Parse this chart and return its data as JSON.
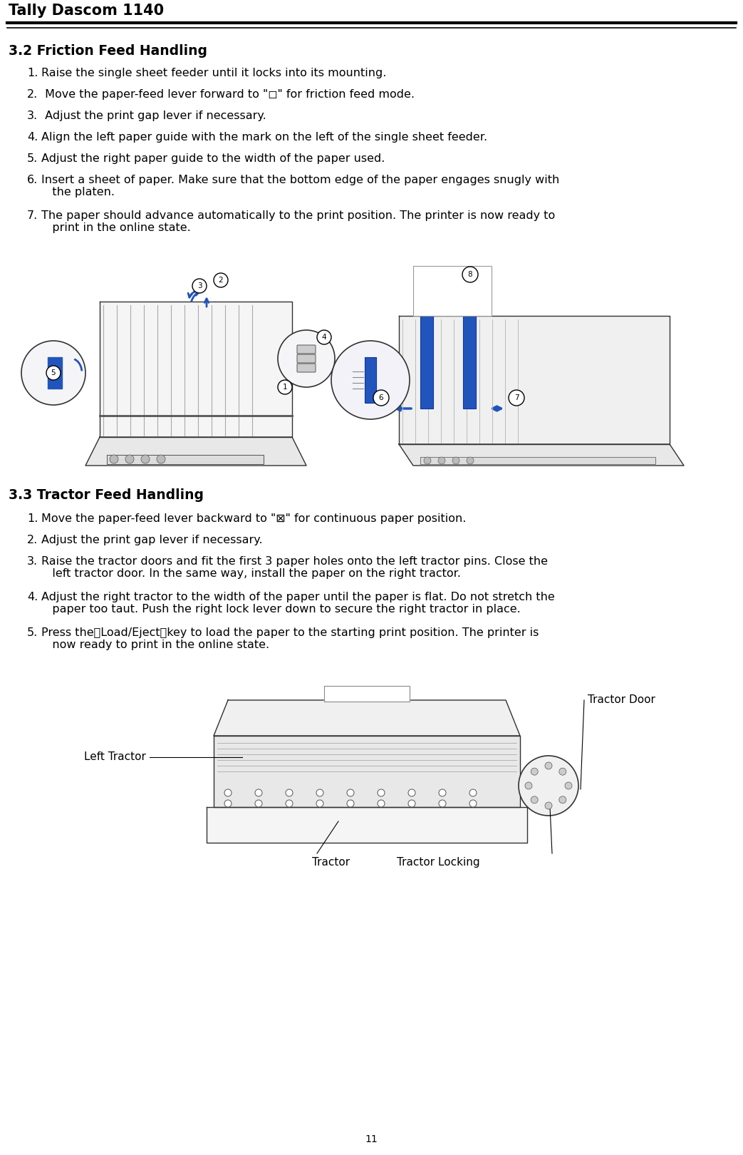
{
  "title": "Tally Dascom 1140",
  "section1_title": "3.2 Friction Feed Handling",
  "section1_items": [
    {
      "num": "1.",
      "text": "Raise the single sheet feeder until it locks into its mounting."
    },
    {
      "num": "2.",
      "text": " Move the paper-feed lever forward to \"◻\" for friction feed mode."
    },
    {
      "num": "3.",
      "text": " Adjust the print gap lever if necessary."
    },
    {
      "num": "4.",
      "text": "Align the left paper guide with the mark on the left of the single sheet feeder."
    },
    {
      "num": "5.",
      "text": "Adjust the right paper guide to the width of the paper used."
    },
    {
      "num": "6.",
      "text": "Insert a sheet of paper. Make sure that the bottom edge of the paper engages snugly with\n   the platen."
    },
    {
      "num": "7.",
      "text": "The paper should advance automatically to the print position. The printer is now ready to\n   print in the online state."
    }
  ],
  "section2_title": "3.3 Tractor Feed Handling",
  "section2_items": [
    {
      "num": "1.",
      "text": "Move the paper-feed lever backward to \"⊠\" for continuous paper position."
    },
    {
      "num": "2.",
      "text": "Adjust the print gap lever if necessary."
    },
    {
      "num": "3.",
      "text": "Raise the tractor doors and fit the first 3 paper holes onto the left tractor pins. Close the\n   left tractor door. In the same way, install the paper on the right tractor."
    },
    {
      "num": "4.",
      "text": "Adjust the right tractor to the width of the paper until the paper is flat. Do not stretch the\n   paper too taut. Push the right lock lever down to secure the right tractor in place."
    },
    {
      "num": "5.",
      "text": "Press the【Load/Eject】key to load the paper to the starting print position. The printer is\n   now ready to print in the online state."
    }
  ],
  "page_number": "11",
  "bg_color": "#ffffff",
  "text_color": "#000000",
  "title_fontsize": 15,
  "section_fontsize": 13.5,
  "body_fontsize": 11.5,
  "left_tractor_label": "Left Tractor",
  "tractor_door_label": "Tractor Door",
  "tractor_label": "Tractor",
  "tractor_locking_label": "Tractor Locking",
  "blue": "#2255bb",
  "darkblue": "#1133aa",
  "lightgray": "#f0f0f0",
  "midgray": "#888888",
  "darkgray": "#333333"
}
